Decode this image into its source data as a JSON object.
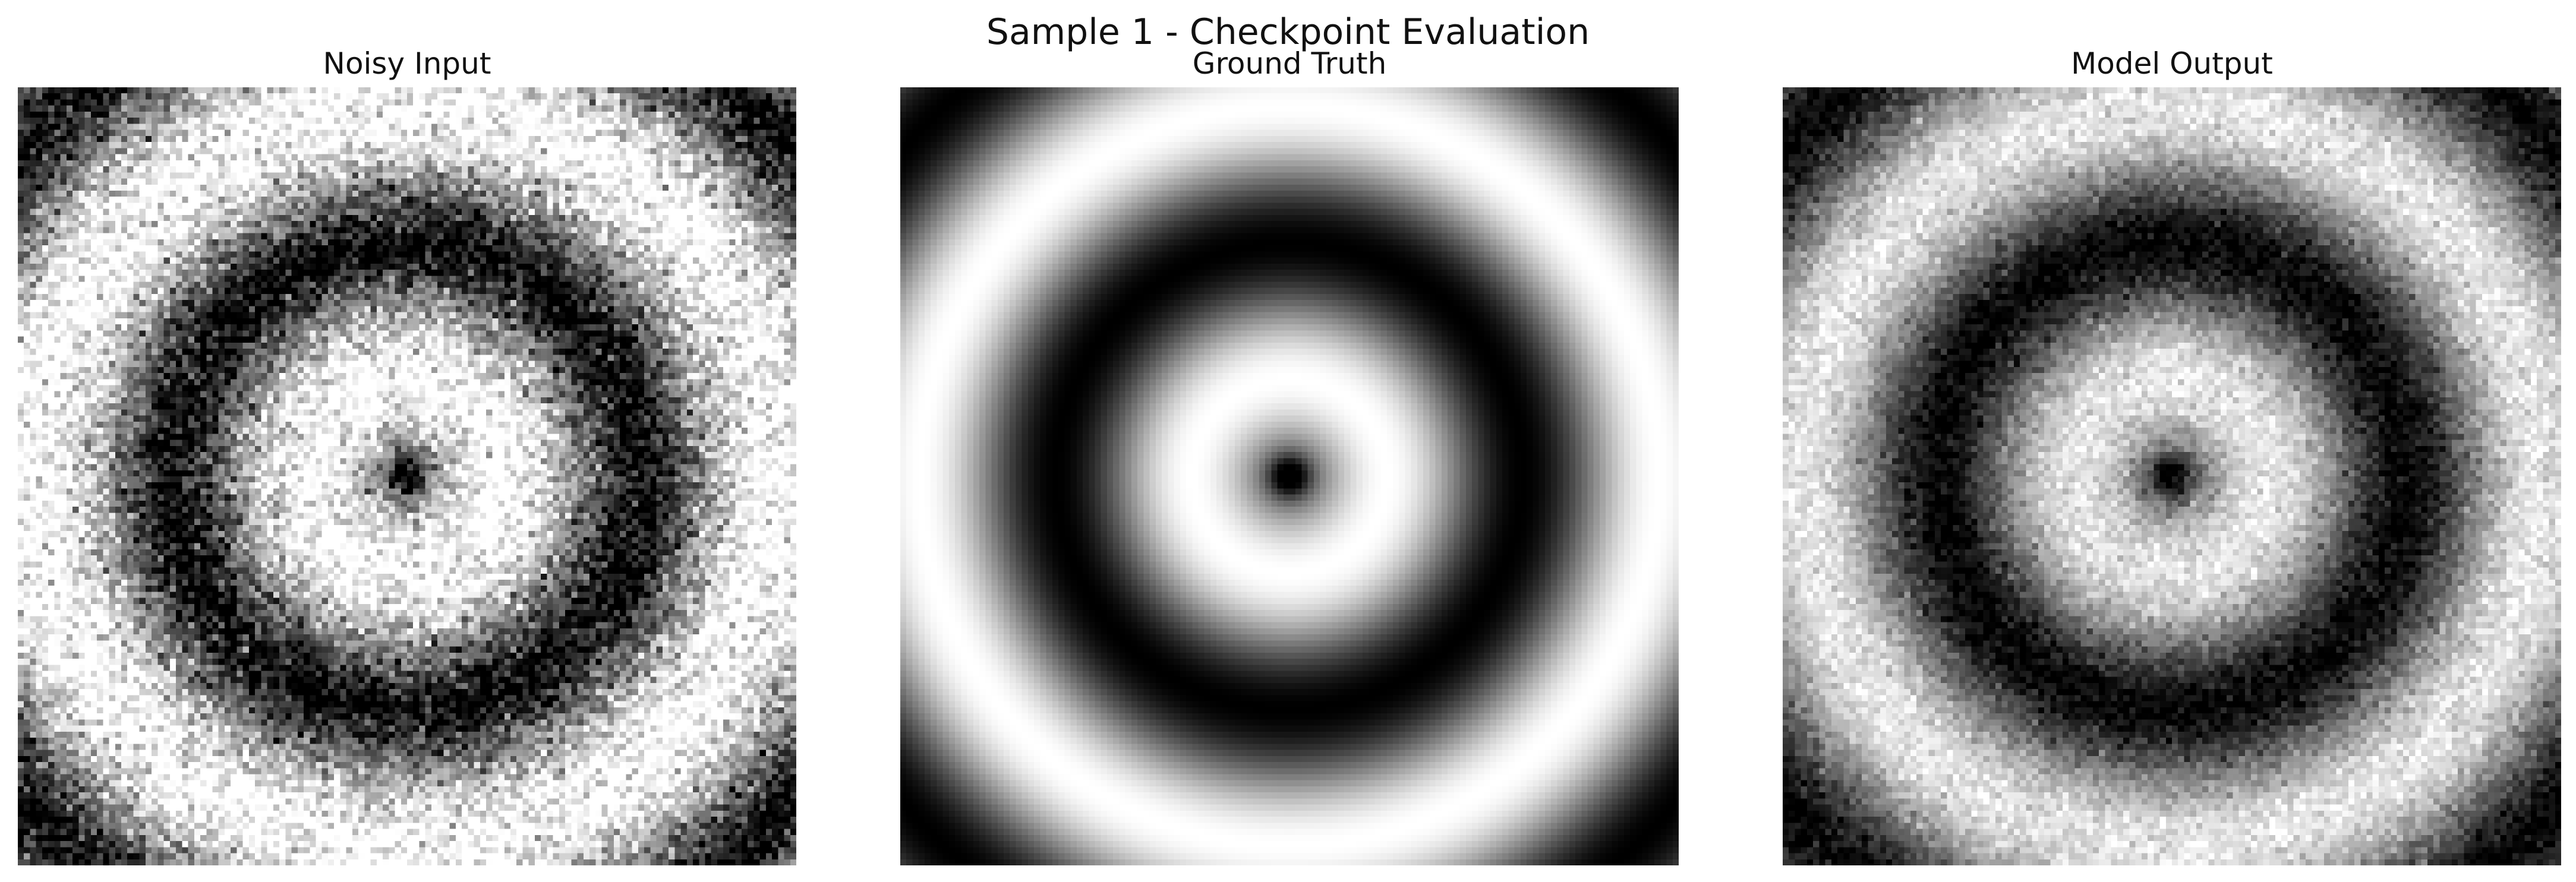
{
  "figure": {
    "suptitle": "Sample 1 - Checkpoint Evaluation"
  },
  "panels": [
    {
      "title": "Noisy Input",
      "image_name": "noisy-input-image",
      "colormap": "gray",
      "noise": "heavy"
    },
    {
      "title": "Ground Truth",
      "image_name": "ground-truth-image",
      "colormap": "gray",
      "noise": "none"
    },
    {
      "title": "Model Output",
      "image_name": "model-output-image",
      "colormap": "gray",
      "noise": "light"
    }
  ]
}
